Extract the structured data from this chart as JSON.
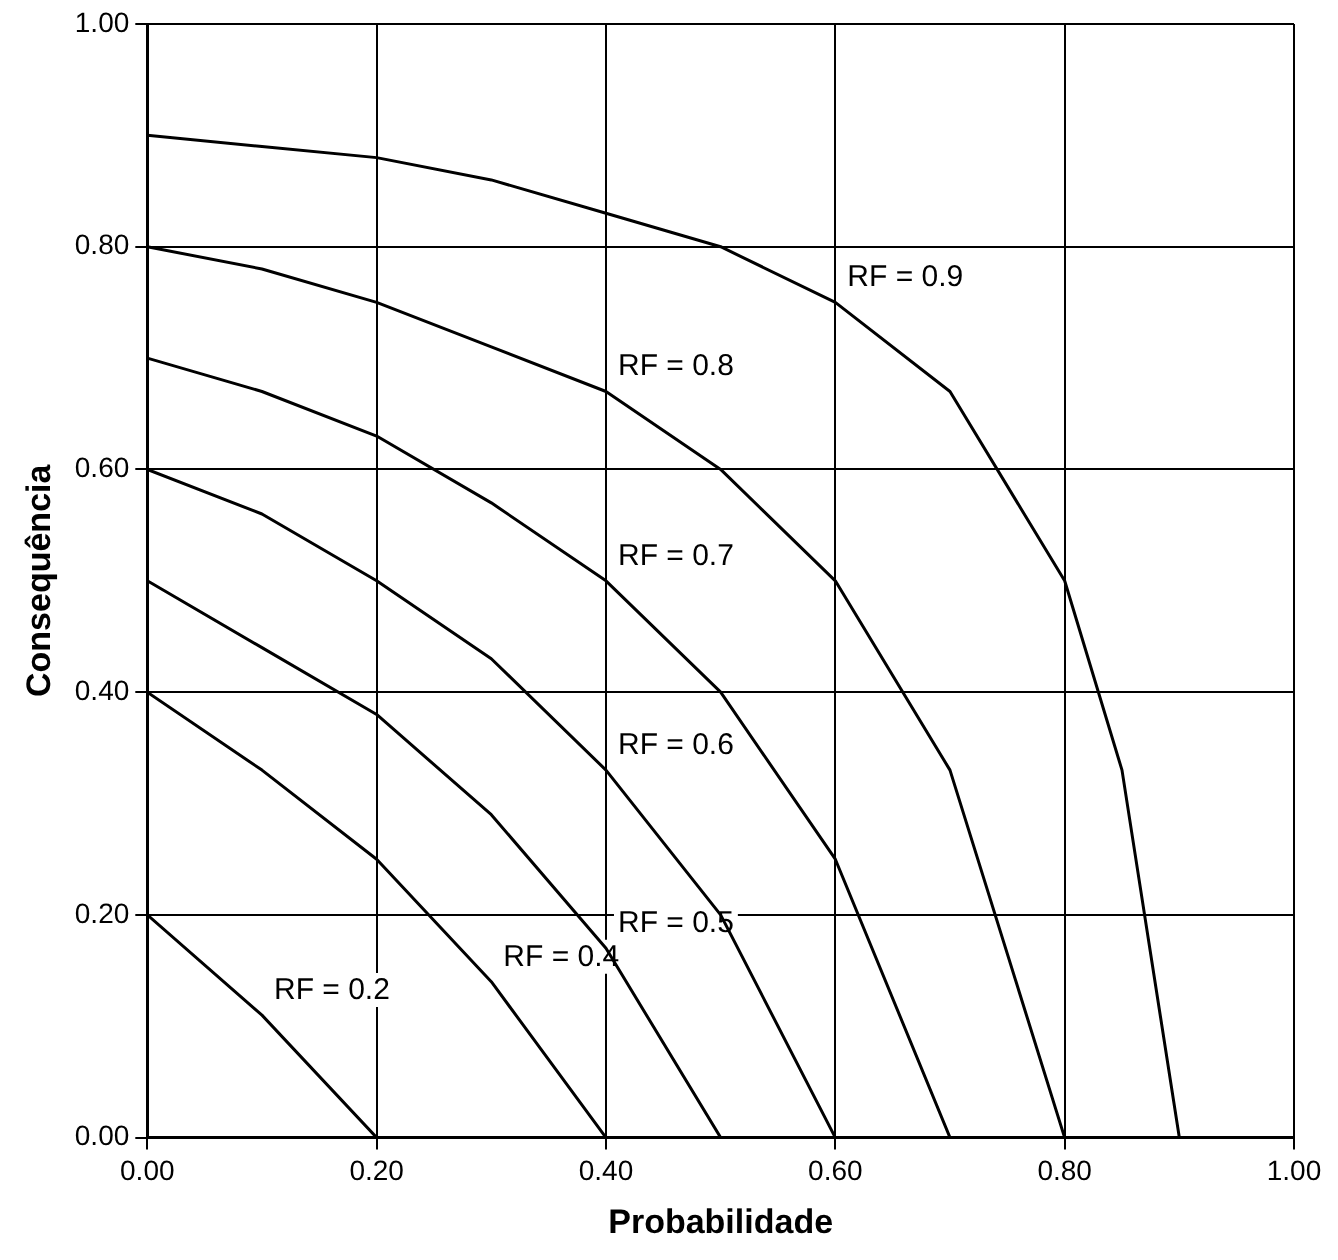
{
  "chart_data": {
    "type": "line",
    "xlabel": "Probabilidade",
    "ylabel": "Consequência",
    "xlim": [
      0,
      1
    ],
    "ylim": [
      0,
      1
    ],
    "xticks": [
      {
        "value": 0,
        "label": "0.00"
      },
      {
        "value": 0.2,
        "label": "0.20"
      },
      {
        "value": 0.4,
        "label": "0.40"
      },
      {
        "value": 0.6,
        "label": "0.60"
      },
      {
        "value": 0.8,
        "label": "0.80"
      },
      {
        "value": 1,
        "label": "1.00"
      }
    ],
    "yticks": [
      {
        "value": 0,
        "label": "0.00"
      },
      {
        "value": 0.2,
        "label": "0.20"
      },
      {
        "value": 0.4,
        "label": "0.40"
      },
      {
        "value": 0.6,
        "label": "0.60"
      },
      {
        "value": 0.8,
        "label": "0.80"
      },
      {
        "value": 1,
        "label": "1.00"
      }
    ],
    "grid": true,
    "legend": false,
    "marker": "none",
    "line_style": "solid",
    "series": [
      {
        "color": "#000000",
        "x": [
          0,
          0.1,
          0.2
        ],
        "values": [
          0.2,
          0.11,
          0
        ]
      },
      {
        "color": "#000000",
        "x": [
          0,
          0.1,
          0.2,
          0.3,
          0.4
        ],
        "values": [
          0.4,
          0.33,
          0.25,
          0.14,
          0
        ]
      },
      {
        "color": "#000000",
        "x": [
          0,
          0.1,
          0.2,
          0.3,
          0.4,
          0.5
        ],
        "values": [
          0.5,
          0.44,
          0.38,
          0.29,
          0.17,
          0
        ]
      },
      {
        "color": "#000000",
        "x": [
          0,
          0.1,
          0.2,
          0.3,
          0.4,
          0.5,
          0.6
        ],
        "values": [
          0.6,
          0.56,
          0.5,
          0.43,
          0.33,
          0.2,
          0
        ]
      },
      {
        "color": "#000000",
        "x": [
          0,
          0.1,
          0.2,
          0.3,
          0.4,
          0.5,
          0.6,
          0.7
        ],
        "values": [
          0.7,
          0.67,
          0.63,
          0.57,
          0.5,
          0.4,
          0.25,
          0
        ]
      },
      {
        "color": "#000000",
        "x": [
          0,
          0.1,
          0.2,
          0.3,
          0.4,
          0.5,
          0.6,
          0.7,
          0.8
        ],
        "values": [
          0.8,
          0.78,
          0.75,
          0.71,
          0.67,
          0.6,
          0.5,
          0.33,
          0
        ]
      },
      {
        "color": "#000000",
        "x": [
          0,
          0.1,
          0.2,
          0.3,
          0.4,
          0.5,
          0.6,
          0.7,
          0.8,
          0.85,
          0.9
        ],
        "values": [
          0.9,
          0.89,
          0.88,
          0.86,
          0.83,
          0.8,
          0.75,
          0.67,
          0.5,
          0.33,
          0
        ]
      }
    ],
    "annotations": [
      {
        "text": "RF = 0.9",
        "x": 0.6,
        "y": 0.75
      },
      {
        "text": "RF = 0.8",
        "x": 0.4,
        "y": 0.67
      },
      {
        "text": "RF = 0.7",
        "x": 0.4,
        "y": 0.5
      },
      {
        "text": "RF = 0.6",
        "x": 0.4,
        "y": 0.33
      },
      {
        "text": "RF = 0.5",
        "x": 0.4,
        "y": 0.17
      },
      {
        "text": "RF = 0.4",
        "x": 0.3,
        "y": 0.14
      },
      {
        "text": "RF = 0.2",
        "x": 0.1,
        "y": 0.11
      }
    ]
  }
}
